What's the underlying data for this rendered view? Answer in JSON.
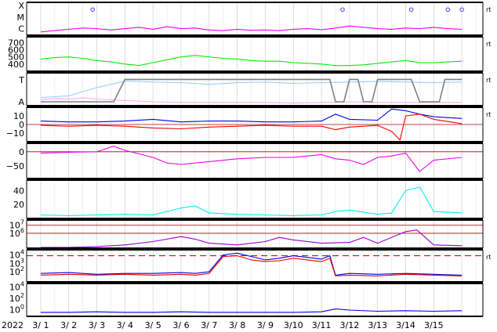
{
  "chart_data": {
    "type": "line",
    "year_label": "2022",
    "x_ticks": [
      "3/ 1",
      "3/ 2",
      "3/ 3",
      "3/ 4",
      "3/ 5",
      "3/ 6",
      "3/ 7",
      "3/ 8",
      "3/ 9",
      "3/10",
      "3/11",
      "3/12",
      "3/13",
      "3/14",
      "3/15"
    ],
    "x_range": [
      "2022-02-28T12:00",
      "2022-03-15T18:00"
    ],
    "grid": true,
    "colors": {
      "magenta": "#ee00ee",
      "green": "#00ee00",
      "light_blue": "#99ccff",
      "pink": "#ffaaee",
      "gray": "#808080",
      "blue": "#0000ee",
      "red": "#ee0000",
      "purple_flux": "#cc33ee",
      "cyan": "#00eeee",
      "violet": "#9900cc",
      "dark_red": "#aa0000"
    },
    "panels": [
      {
        "id": "xray-class",
        "y_tick_labels": [
          "X",
          "M",
          "C"
        ],
        "right_tag": "rt",
        "series": [
          {
            "color": "magenta",
            "x": [
              0.0,
              0.5,
              1.0,
              1.5,
              2.0,
              2.5,
              3.0,
              3.5,
              4.0,
              4.5,
              5.0,
              5.5,
              6.0,
              6.5,
              7.0,
              7.5,
              8.0,
              8.5,
              9.0,
              9.5,
              10.0,
              10.5,
              11.0,
              11.5,
              12.0,
              12.5,
              13.0,
              13.5,
              14.0,
              14.5,
              15.0
            ],
            "y": [
              0.1,
              0.14,
              0.18,
              0.22,
              0.2,
              0.16,
              0.2,
              0.24,
              0.18,
              0.26,
              0.2,
              0.22,
              0.16,
              0.14,
              0.18,
              0.15,
              0.16,
              0.14,
              0.18,
              0.2,
              0.17,
              0.22,
              0.28,
              0.24,
              0.2,
              0.18,
              0.22,
              0.2,
              0.24,
              0.2,
              0.18
            ]
          }
        ],
        "markers": [
          {
            "x": 1.85,
            "y": 0.78
          },
          {
            "x": 10.75,
            "y": 0.78
          },
          {
            "x": 13.2,
            "y": 0.78
          },
          {
            "x": 14.5,
            "y": 0.78
          },
          {
            "x": 15.0,
            "y": 0.78
          }
        ]
      },
      {
        "id": "speed",
        "y_tick_labels": [
          "700",
          "600",
          "500",
          "400"
        ],
        "y_ticks": [
          700,
          600,
          500,
          400
        ],
        "ylim": [
          300,
          780
        ],
        "right_tag": "rt",
        "series": [
          {
            "color": "green",
            "x": [
              0.0,
              0.5,
              1.0,
              1.5,
              2.0,
              2.5,
              3.0,
              3.5,
              4.0,
              4.5,
              5.0,
              5.5,
              6.0,
              6.5,
              7.0,
              7.5,
              8.0,
              8.5,
              9.0,
              9.5,
              10.0,
              10.5,
              11.0,
              11.5,
              12.0,
              12.5,
              13.0,
              13.5,
              14.0,
              14.5,
              15.0
            ],
            "y": [
              470,
              490,
              500,
              480,
              450,
              430,
              400,
              380,
              420,
              460,
              500,
              520,
              500,
              480,
              470,
              450,
              440,
              440,
              420,
              410,
              400,
              380,
              380,
              390,
              410,
              430,
              450,
              420,
              420,
              430,
              440
            ]
          }
        ]
      },
      {
        "id": "pressure-index",
        "y_tick_labels": [
          "T",
          "A"
        ],
        "right_tag": "rt",
        "series": [
          {
            "color": "light_blue",
            "x": [
              0.0,
              1.0,
              2.0,
              3.0,
              4.0,
              5.0,
              6.0,
              7.0,
              8.0,
              9.0,
              10.0,
              11.0,
              12.0,
              13.0,
              14.0,
              15.0
            ],
            "y": [
              0.25,
              0.3,
              0.55,
              0.75,
              0.72,
              0.7,
              0.65,
              0.7,
              0.72,
              0.68,
              0.7,
              0.72,
              0.74,
              0.72,
              0.7,
              0.72
            ]
          },
          {
            "color": "pink",
            "x": [
              0.0,
              0.5,
              1.0,
              1.5,
              2.0,
              2.5,
              3.0,
              4.0,
              5.0,
              6.0,
              7.0,
              8.0,
              9.0,
              10.0,
              11.0,
              12.0,
              13.0,
              14.0,
              15.0
            ],
            "y": [
              0.18,
              0.22,
              0.2,
              0.24,
              0.2,
              0.18,
              0.16,
              0.12,
              0.1,
              0.1,
              0.1,
              0.1,
              0.08,
              0.1,
              0.12,
              0.1,
              0.1,
              0.1,
              0.1
            ]
          },
          {
            "color": "gray",
            "x": [
              0.0,
              2.6,
              3.0,
              10.3,
              10.5,
              10.8,
              11.0,
              11.3,
              11.5,
              11.8,
              12.0,
              13.2,
              13.5,
              14.2,
              14.4,
              15.0
            ],
            "y": [
              0.12,
              0.12,
              0.8,
              0.8,
              0.12,
              0.12,
              0.8,
              0.8,
              0.12,
              0.12,
              0.8,
              0.8,
              0.12,
              0.12,
              0.8,
              0.8
            ]
          }
        ]
      },
      {
        "id": "magnetic-field",
        "y_tick_labels": [
          "10",
          "0",
          "−10"
        ],
        "y_ticks": [
          10,
          0,
          -10
        ],
        "ylim": [
          -20,
          20
        ],
        "right_tag": "rt",
        "series": [
          {
            "color": "blue",
            "x": [
              0.0,
              1.0,
              2.0,
              3.0,
              4.0,
              5.0,
              6.0,
              7.0,
              8.0,
              9.0,
              10.0,
              10.5,
              11.0,
              12.0,
              12.5,
              13.0,
              13.5,
              14.0,
              15.0
            ],
            "y": [
              4,
              3,
              3,
              4,
              6,
              3,
              4,
              4,
              3,
              3,
              4,
              12,
              6,
              5,
              18,
              16,
              12,
              9,
              7
            ]
          },
          {
            "color": "red",
            "x": [
              0.0,
              1.0,
              2.0,
              3.0,
              4.0,
              5.0,
              6.0,
              7.0,
              8.0,
              9.0,
              10.0,
              10.5,
              11.0,
              12.0,
              12.5,
              12.8,
              13.0,
              13.5,
              14.0,
              15.0
            ],
            "y": [
              -1,
              -2,
              -1,
              -2,
              -4,
              -5,
              -3,
              -2,
              -1,
              -2,
              -2,
              -6,
              -3,
              -1,
              -8,
              -18,
              10,
              12,
              6,
              1
            ]
          }
        ]
      },
      {
        "id": "bz-angle",
        "y_tick_labels": [
          "0",
          "−50"
        ],
        "y_ticks": [
          0,
          -50
        ],
        "ylim": [
          -95,
          30
        ],
        "series": [
          {
            "color": "magenta",
            "x": [
              0.0,
              1.0,
              2.0,
              2.6,
              3.0,
              4.0,
              4.5,
              5.0,
              6.0,
              7.0,
              8.0,
              9.0,
              10.0,
              10.5,
              11.0,
              11.5,
              12.0,
              12.5,
              13.0,
              13.5,
              14.0,
              15.0
            ],
            "y": [
              -5,
              -2,
              0,
              20,
              5,
              -20,
              -40,
              -45,
              -35,
              -25,
              -20,
              -20,
              -10,
              -25,
              -30,
              -45,
              -20,
              -15,
              -5,
              -70,
              -30,
              -20
            ]
          }
        ]
      },
      {
        "id": "density",
        "y_tick_labels": [
          "40",
          "20"
        ],
        "y_ticks": [
          40,
          20
        ],
        "ylim": [
          0,
          55
        ],
        "series": [
          {
            "color": "cyan",
            "x": [
              0.0,
              1.0,
              2.0,
              3.0,
              4.0,
              4.5,
              5.0,
              5.5,
              6.0,
              7.0,
              8.0,
              9.0,
              10.0,
              10.5,
              11.0,
              12.0,
              12.5,
              13.0,
              13.5,
              14.0,
              15.0
            ],
            "y": [
              5,
              4,
              5,
              6,
              5,
              10,
              15,
              18,
              8,
              6,
              5,
              4,
              5,
              10,
              12,
              6,
              8,
              40,
              45,
              10,
              8
            ]
          }
        ]
      },
      {
        "id": "proton-flux",
        "y_tick_labels": [
          "10^7",
          "10^6"
        ],
        "y_ticks_log": [
          7,
          6
        ],
        "log_ylim": [
          4.2,
          7.6
        ],
        "reference_lines_log": [
          7.0,
          6.0
        ],
        "series": [
          {
            "color": "violet",
            "x": [
              0.0,
              1.0,
              2.0,
              3.0,
              4.0,
              5.0,
              5.5,
              6.0,
              7.0,
              8.0,
              8.5,
              9.0,
              10.0,
              11.0,
              11.5,
              12.0,
              13.0,
              13.2,
              13.4,
              14.0,
              15.0
            ],
            "y": [
              4.3,
              4.3,
              4.4,
              4.6,
              5.0,
              5.6,
              5.3,
              4.8,
              4.6,
              5.0,
              5.5,
              5.2,
              4.8,
              4.9,
              5.5,
              4.8,
              6.2,
              6.3,
              6.4,
              4.6,
              4.5
            ]
          }
        ]
      },
      {
        "id": "electron-flux",
        "y_tick_labels": [
          "10^4",
          "10^3",
          "10^2"
        ],
        "y_ticks_log": [
          4,
          3,
          2
        ],
        "log_ylim": [
          0.8,
          4.6
        ],
        "reference_lines_log": [
          3.9
        ],
        "right_tag": "rt",
        "series": [
          {
            "color": "blue",
            "x": [
              0.0,
              1.0,
              2.0,
              3.0,
              4.0,
              5.0,
              5.5,
              6.0,
              6.5,
              7.0,
              7.5,
              8.0,
              8.5,
              9.0,
              9.5,
              10.0,
              10.3,
              10.5,
              11.0,
              12.0,
              13.0,
              14.0,
              15.0
            ],
            "y": [
              1.8,
              1.9,
              1.7,
              1.8,
              1.8,
              1.9,
              1.8,
              2.0,
              4.0,
              4.2,
              3.8,
              3.4,
              3.6,
              3.9,
              3.7,
              3.5,
              3.9,
              1.6,
              1.8,
              1.7,
              1.8,
              1.7,
              1.6
            ]
          },
          {
            "color": "red",
            "x": [
              0.0,
              1.0,
              2.0,
              3.0,
              4.0,
              5.0,
              5.5,
              6.0,
              6.5,
              7.0,
              7.5,
              8.0,
              8.5,
              9.0,
              9.5,
              10.0,
              10.3,
              10.5,
              11.0,
              12.0,
              13.0,
              14.0,
              15.0
            ],
            "y": [
              1.6,
              1.7,
              1.6,
              1.7,
              1.6,
              1.7,
              1.6,
              1.8,
              3.8,
              3.9,
              3.4,
              3.2,
              3.3,
              3.6,
              3.4,
              3.2,
              3.6,
              1.5,
              1.6,
              1.5,
              1.7,
              1.6,
              1.5
            ]
          }
        ]
      },
      {
        "id": "particle-flux",
        "y_tick_labels": [
          "10^4",
          "10^2",
          "10^0"
        ],
        "y_ticks_log": [
          4,
          2,
          0
        ],
        "log_ylim": [
          -1.2,
          4.6
        ],
        "series": [
          {
            "color": "blue",
            "x": [
              0.0,
              1.0,
              2.0,
              3.0,
              4.0,
              5.0,
              6.0,
              7.0,
              8.0,
              9.0,
              10.0,
              10.5,
              11.0,
              12.0,
              13.0,
              14.0,
              15.0
            ],
            "y": [
              -0.5,
              -0.5,
              -0.4,
              -0.5,
              -0.5,
              -0.4,
              -0.5,
              -0.5,
              -0.5,
              -0.5,
              -0.4,
              0.1,
              -0.1,
              -0.3,
              -0.2,
              -0.3,
              -0.2
            ]
          }
        ]
      }
    ]
  }
}
